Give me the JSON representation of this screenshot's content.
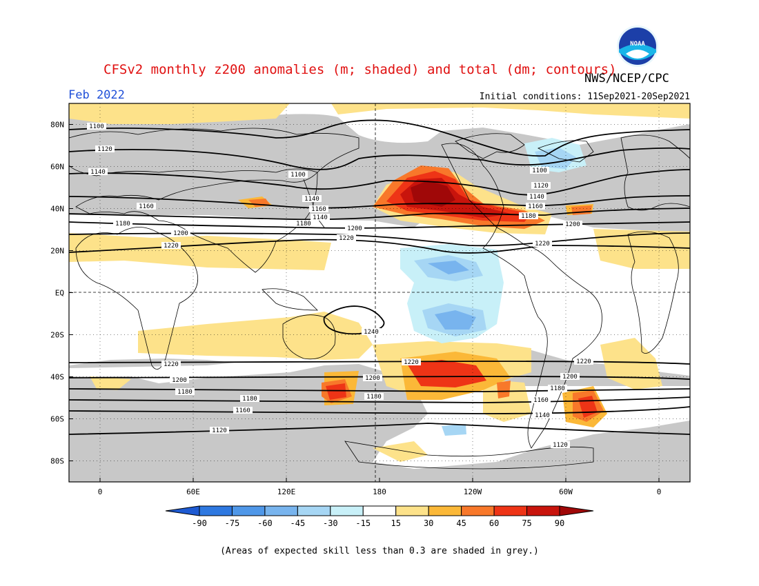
{
  "header": {
    "title": "CFSv2 monthly z200 anomalies (m; shaded) and total (dm; contours)",
    "agency": "NWS/NCEP/CPC",
    "month": "Feb 2022",
    "initial_conditions": "Initial conditions: 11Sep2021-20Sep2021",
    "logo_text": "NOAA"
  },
  "map": {
    "projection": "cylindrical",
    "lon_range": [
      -20,
      380
    ],
    "lat_range": [
      -90,
      90
    ],
    "lat_ticks": [
      "80N",
      "60N",
      "40N",
      "20N",
      "EQ",
      "20S",
      "40S",
      "60S",
      "80S"
    ],
    "lon_ticks": [
      "0",
      "60E",
      "120E",
      "180",
      "120W",
      "60W",
      "0"
    ],
    "contour_labels": [
      "1100",
      "1120",
      "1140",
      "1160",
      "1180",
      "1200",
      "1220",
      "1240"
    ],
    "skill_mask_color": "#c8c8c8"
  },
  "colorbar": {
    "tick_labels": [
      "-90",
      "-75",
      "-60",
      "-45",
      "-30",
      "-15",
      "15",
      "30",
      "45",
      "60",
      "75",
      "90"
    ],
    "colors": [
      "#1e5ad2",
      "#2e78e0",
      "#4f97e8",
      "#78b4ee",
      "#a6d6f4",
      "#c8f0f8",
      "#ffffff",
      "#fde28a",
      "#fbb838",
      "#f8782a",
      "#ee3416",
      "#c8140c",
      "#a00808"
    ]
  },
  "footnote": "(Areas of expected skill less than 0.3 are shaded in grey.)"
}
